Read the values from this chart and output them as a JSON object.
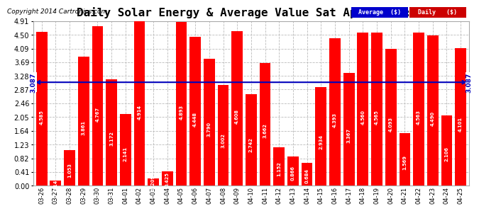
{
  "title": "Daily Solar Energy & Average Value Sat Apr 26 06:00",
  "copyright": "Copyright 2014 Cartronics.com",
  "categories": [
    "03-26",
    "03-27",
    "03-28",
    "03-29",
    "03-30",
    "03-31",
    "04-01",
    "04-02",
    "04-03",
    "04-04",
    "04-05",
    "04-06",
    "04-07",
    "04-08",
    "04-09",
    "04-10",
    "04-11",
    "04-12",
    "04-13",
    "04-14",
    "04-15",
    "04-16",
    "04-17",
    "04-18",
    "04-19",
    "04-20",
    "04-21",
    "04-22",
    "04-23",
    "04-24",
    "04-25"
  ],
  "values": [
    4.585,
    0.149,
    1.053,
    3.861,
    4.767,
    3.172,
    2.141,
    4.914,
    0.209,
    0.425,
    4.893,
    4.448,
    3.79,
    3.002,
    4.608,
    2.742,
    3.662,
    1.152,
    0.866,
    0.684,
    2.934,
    4.393,
    3.367,
    4.56,
    4.565,
    4.093,
    1.569,
    4.563,
    4.49,
    2.106,
    4.101
  ],
  "average": 3.087,
  "bar_color": "#ff0000",
  "average_color": "#0000bb",
  "ylim": [
    0.0,
    4.91
  ],
  "yticks": [
    0.0,
    0.41,
    0.82,
    1.23,
    1.64,
    2.05,
    2.46,
    2.87,
    3.28,
    3.69,
    4.09,
    4.5,
    4.91
  ],
  "bg_color": "#ffffff",
  "grid_color": "#bbbbbb",
  "title_fontsize": 11.5,
  "legend_labels": [
    "Average  ($)",
    "Daily   ($)"
  ],
  "legend_bg_colors": [
    "#0000cc",
    "#cc0000"
  ],
  "avg_label": "3.087"
}
